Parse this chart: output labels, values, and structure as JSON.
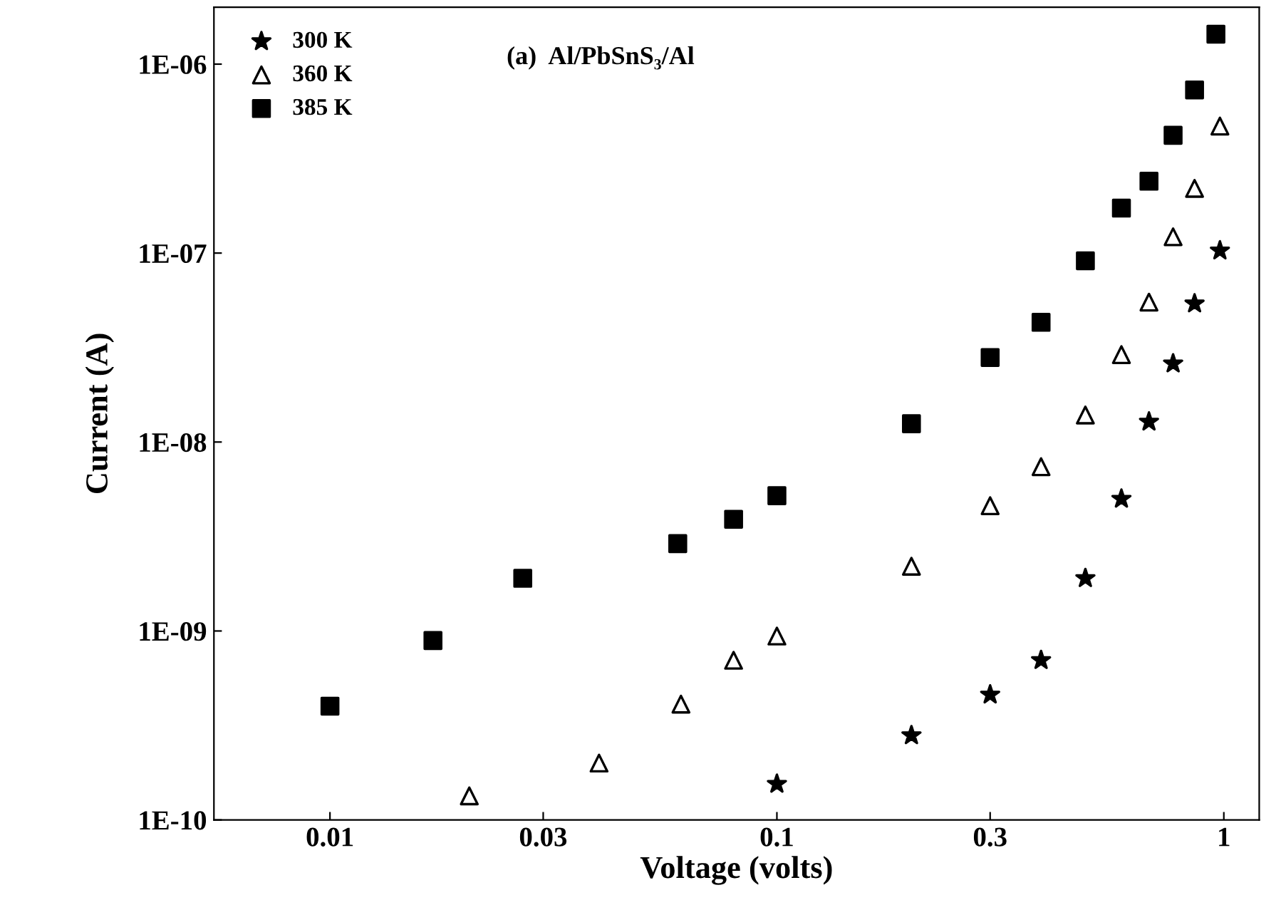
{
  "chart_data": {
    "type": "scatter",
    "xlabel": "Voltage (volts)",
    "ylabel": "Current (A)",
    "log": "xy",
    "xlim": [
      0.0055,
      1.2
    ],
    "ylim": [
      1e-10,
      2e-06
    ],
    "xticks": [
      0.01,
      0.03,
      0.1,
      0.3,
      1
    ],
    "yticks": [
      {
        "value": 1e-10,
        "label": "1E-10"
      },
      {
        "value": 1e-09,
        "label": "1E-09"
      },
      {
        "value": 1e-08,
        "label": "1E-08"
      },
      {
        "value": 1e-07,
        "label": "1E-07"
      },
      {
        "value": 1e-06,
        "label": "1E-06"
      }
    ],
    "annotations": [
      "(a)  Al/PbSnS₃/Al"
    ],
    "legend": "top left",
    "grid": false,
    "series": [
      {
        "name": "300 K",
        "color": "#000000",
        "marker": "star",
        "x": [
          0.1,
          0.2,
          0.3,
          0.39,
          0.49,
          0.59,
          0.68,
          0.77,
          0.86,
          0.98
        ],
        "values": [
          1.55e-10,
          2.8e-10,
          4.6e-10,
          7e-10,
          1.9e-09,
          5e-09,
          1.28e-08,
          2.6e-08,
          5.4e-08,
          1.03e-07
        ]
      },
      {
        "name": "360 K",
        "color": "#000000",
        "marker": "triangle",
        "x": [
          0.0205,
          0.04,
          0.061,
          0.08,
          0.1,
          0.2,
          0.3,
          0.39,
          0.49,
          0.59,
          0.68,
          0.77,
          0.86,
          0.98
        ],
        "values": [
          1.34e-10,
          2e-10,
          4.1e-10,
          7e-10,
          9.4e-10,
          2.2e-09,
          4.6e-09,
          7.4e-09,
          1.39e-08,
          2.9e-08,
          5.5e-08,
          1.22e-07,
          2.2e-07,
          4.7e-07
        ]
      },
      {
        "name": "385 K",
        "color": "#000000",
        "marker": "square",
        "x": [
          0.01,
          0.017,
          0.027,
          0.06,
          0.08,
          0.1,
          0.2,
          0.3,
          0.39,
          0.49,
          0.59,
          0.68,
          0.77,
          0.86,
          0.96
        ],
        "values": [
          4e-10,
          8.9e-10,
          1.9e-09,
          2.9e-09,
          3.9e-09,
          5.2e-09,
          1.25e-08,
          2.8e-08,
          4.3e-08,
          9.1e-08,
          1.73e-07,
          2.4e-07,
          4.2e-07,
          7.3e-07,
          1.44e-06
        ]
      }
    ]
  }
}
